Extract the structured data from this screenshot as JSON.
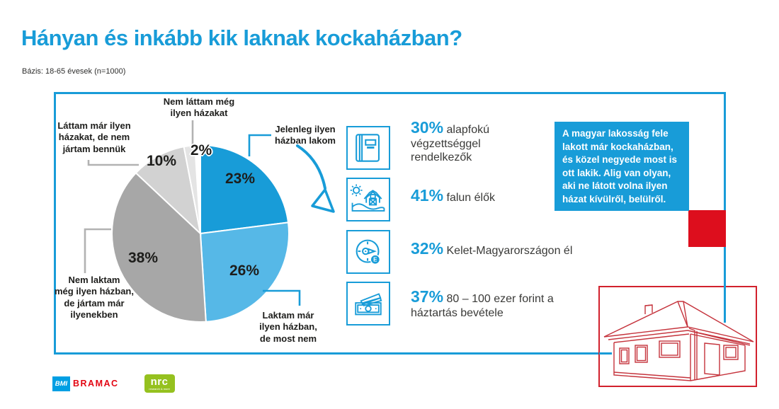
{
  "title": "Hányan és inkább kik laknak kockaházban?",
  "basis": "Bázis: 18-65 évesek (n=1000)",
  "chart_data": {
    "type": "pie",
    "unit": "%",
    "direction": "clockwise",
    "start_angle_deg": 0,
    "legend_position": "callouts",
    "slices": [
      {
        "label": "Jelenleg ilyen\nházban lakom",
        "value": 23,
        "color": "#189cd8"
      },
      {
        "label": "Laktam már\nilyen házban,\nde most nem",
        "value": 26,
        "color": "#56b8e7"
      },
      {
        "label": "Nem laktam\nmég ilyen házban,\nde jártam már\nilyenekben",
        "value": 38,
        "color": "#a7a7a7"
      },
      {
        "label": "Láttam már ilyen\nházakat, de nem\njártam bennük",
        "value": 10,
        "color": "#d2d2d2"
      },
      {
        "label": "Nem láttam még\nilyen házakat",
        "value": 2,
        "color": "#e4e4e4"
      }
    ]
  },
  "stats": [
    {
      "icon": "book-icon",
      "value": "30%",
      "text": "alapfokú végzettséggel rendelkezők"
    },
    {
      "icon": "farm-icon",
      "value": "41%",
      "text": "falun élők"
    },
    {
      "icon": "compass-east-icon",
      "value": "32%",
      "text": "Kelet-Magyarországon él",
      "badge": "E"
    },
    {
      "icon": "money-icon",
      "value": "37%",
      "text": "80 – 100 ezer forint a háztartás bevétele"
    }
  ],
  "info_box": {
    "text": "A magyar lakosság fele\nlakott már kockaházban,\nés közel negyede most is\nott lakik. Alig van olyan,\naki ne látott volna ilyen\nházat kívülről, belülről.",
    "background": "#189cd8"
  },
  "footer": {
    "bmi": "BMI",
    "bramac": "BRAMAC",
    "nrc": "nrc",
    "nrc_sub": "research & more"
  },
  "colors": {
    "primary_blue": "#189cd8",
    "light_blue": "#56b8e7",
    "accent_red": "#dd0e1d",
    "house_red": "#c5333c",
    "leader_gray": "#b2b2b2",
    "text_dark": "#1d1d1b",
    "bmi_blue": "#009fe3",
    "bramac_red": "#e30613",
    "nrc_green": "#95c11f"
  }
}
